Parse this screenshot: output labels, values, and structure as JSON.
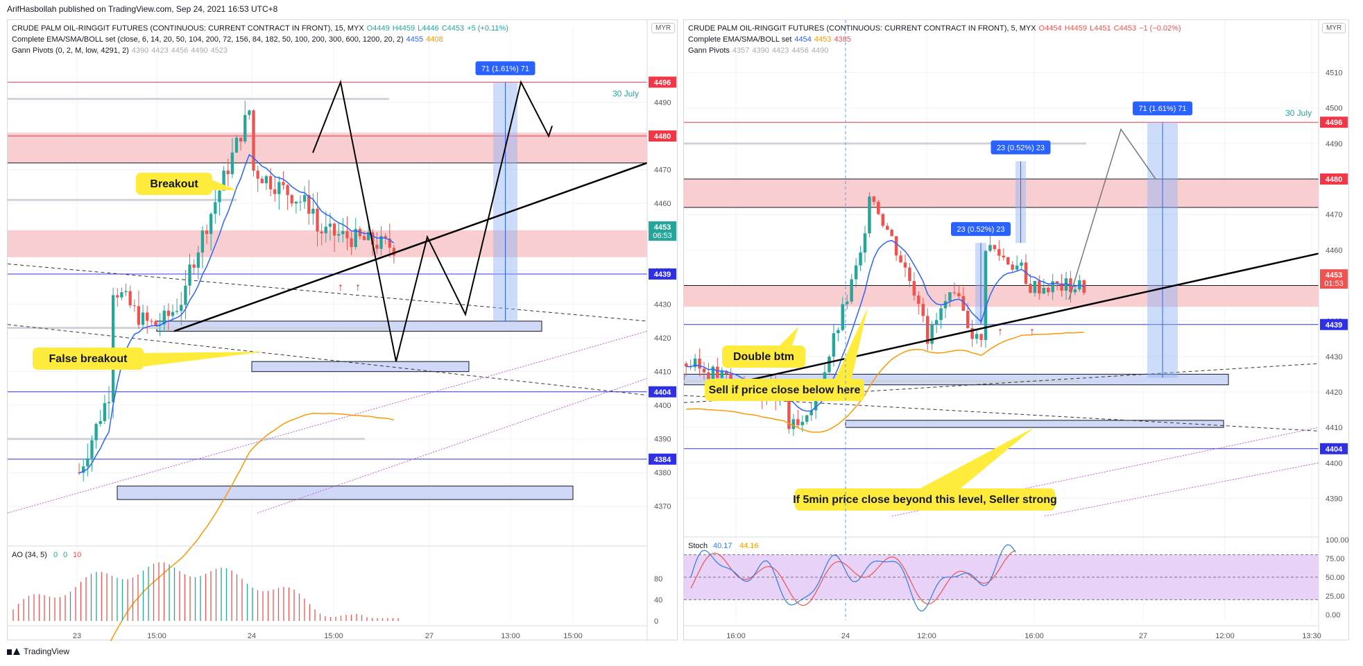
{
  "header": {
    "text": "ArifHasbollah published on TradingView.com, Sep 24, 2021 16:53 UTC+8"
  },
  "footer": {
    "brand": "TradingView"
  },
  "colors": {
    "up": "#26a69a",
    "down": "#ef5350",
    "ema_fast": "#2962ff",
    "ema_slow": "#ff9800",
    "zone_red": "#f7c6c9",
    "zone_blue": "#cfd8f7",
    "resist_red": "#f23645",
    "support_blue": "#2f30e6",
    "label_yellow": "#ffeb3b",
    "stoch_bg": "#e8d2f7",
    "k_line": "#2f7be6",
    "d_line": "#ef5350"
  },
  "chart_data": [
    {
      "type": "candlestick",
      "title": "CRUDE PALM OIL-RINGGIT FUTURES (CONTINUOUS: CURRENT CONTRACT IN FRONT), 15, MYX",
      "ohlc_text": {
        "o": "O4449",
        "h": "H4459",
        "l": "L4446",
        "c": "C4453",
        "chg": "+5 (+0.11%)"
      },
      "indicator_line2": {
        "label": "Complete EMA/SMA/BOLL set (close, 6, 14, 20, 50, 104, 200, 72, 156, 84, 182, 50, 100, 200, 300, 600, 1200, 20, 2)",
        "v1": "4455",
        "v2": "4408"
      },
      "indicator_line3": {
        "label": "Gann Pivots (0, 2, M, low, 4291, 2)",
        "values": [
          "4390",
          "4423",
          "4456",
          "4490",
          "4523"
        ]
      },
      "currency": "MYR",
      "ylim": [
        4365,
        4500
      ],
      "y_ticks": [
        4370,
        4380,
        4390,
        4400,
        4410,
        4420,
        4430,
        4440,
        4450,
        4460,
        4470,
        4480,
        4490
      ],
      "x_ticks": [
        "23",
        "15:00",
        "24",
        "15:00",
        "27",
        "13:00",
        "15:00"
      ],
      "price_tags": [
        {
          "value": 4496,
          "label": "4496",
          "color": "#f23645"
        },
        {
          "value": 4480,
          "label": "4480",
          "color": "#f23645"
        },
        {
          "value": 4453,
          "label": "4453",
          "sub": "06:53",
          "color": "#26a69a"
        },
        {
          "value": 4439,
          "label": "4439",
          "color": "#2f30e6"
        },
        {
          "value": 4404,
          "label": "4404",
          "color": "#2f30e6"
        },
        {
          "value": 4384,
          "label": "4384",
          "color": "#2f30e6"
        }
      ],
      "measure_label": "71 (1.61%) 71",
      "date_note": "30 July",
      "annotations": [
        "Breakout",
        "False breakout"
      ],
      "ao_panel": {
        "label": "AO (34, 5)",
        "vals": [
          "0",
          "0",
          "10"
        ],
        "y_ticks": [
          80,
          40,
          0
        ]
      }
    },
    {
      "type": "candlestick",
      "title": "CRUDE PALM OIL-RINGGIT FUTURES (CONTINUOUS: CURRENT CONTRACT IN FRONT), 5, MYX",
      "ohlc_text": {
        "o": "O4454",
        "h": "H4459",
        "l": "L4451",
        "c": "C4453",
        "chg": "−1 (−0.02%)"
      },
      "indicator_line2": {
        "label": "Complete EMA/SMA/BOLL set",
        "v1": "4454",
        "v2": "4453",
        "v3": "4385"
      },
      "indicator_line3": {
        "label": "Gann Pivots",
        "values": [
          "4357",
          "4390",
          "4423",
          "4456",
          "4490"
        ]
      },
      "currency": "MYR",
      "ylim": [
        4385,
        4515
      ],
      "y_ticks": [
        4390,
        4400,
        4410,
        4420,
        4430,
        4440,
        4450,
        4460,
        4470,
        4480,
        4490,
        4500,
        4510
      ],
      "x_ticks": [
        "16:00",
        "24",
        "12:00",
        "16:00",
        "27",
        "12:00",
        "13:30"
      ],
      "price_tags": [
        {
          "value": 4496,
          "label": "4496",
          "color": "#f23645"
        },
        {
          "value": 4480,
          "label": "4480",
          "color": "#f23645"
        },
        {
          "value": 4453,
          "label": "4453",
          "sub": "01:53",
          "color": "#ef5350"
        },
        {
          "value": 4439,
          "label": "4439",
          "color": "#2f30e6"
        },
        {
          "value": 4404,
          "label": "4404",
          "color": "#2f30e6"
        }
      ],
      "measure_labels": [
        "71 (1.61%) 71",
        "23 (0.52%) 23",
        "23 (0.52%) 23"
      ],
      "date_note": "30 July",
      "annotations": [
        "Double btm",
        "Sell if price close below here",
        "If 5min price close beyond this level, Seller strong"
      ],
      "stoch_panel": {
        "label": "Stoch",
        "k": "40.17",
        "d": "44.16",
        "y_ticks": [
          "100.00",
          "75.00",
          "50.00",
          "25.00",
          "0.00"
        ]
      }
    }
  ]
}
